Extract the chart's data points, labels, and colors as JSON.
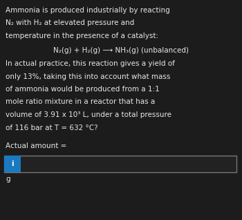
{
  "bg_color": "#1c1c1c",
  "text_color": "#e8e8e8",
  "title_lines": [
    "Ammonia is produced industrially by reacting",
    "N₂ with H₂ at elevated pressure and",
    "temperature in the presence of a catalyst:"
  ],
  "equation_line": "N₂(g) + H₂(g) ⟶ NH₃(g) (unbalanced)",
  "body_lines": [
    "In actual practice, this reaction gives a yield of",
    "only 13%, taking this into account what mass",
    "of ammonia would be produced from a 1:1",
    "mole ratio mixture in a reactor that has a",
    "volume of 3.91 x 10³ L, under a total pressure",
    "of 116 bar at T = 632 °C?"
  ],
  "label_actual": "Actual amount =",
  "unit": "g",
  "input_box_color": "#222222",
  "input_border_color": "#777777",
  "info_icon_color": "#1a7abf",
  "info_icon_text": "i",
  "main_fontsize": 7.5,
  "eq_fontsize": 7.5
}
